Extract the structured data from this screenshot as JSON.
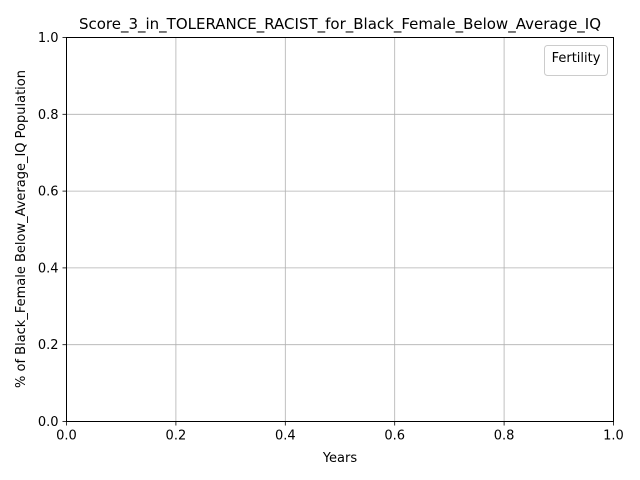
{
  "chart_data": {
    "type": "line",
    "title": "Score_3_in_TOLERANCE_RACIST_for_Black_Female_Below_Average_IQ",
    "xlabel": "Years",
    "ylabel": "% of Black_Female Below_Average_IQ Population",
    "xlim": [
      0.0,
      1.0
    ],
    "ylim": [
      0.0,
      1.0
    ],
    "x_ticks": [
      "0.0",
      "0.2",
      "0.4",
      "0.6",
      "0.8",
      "1.0"
    ],
    "y_ticks": [
      "0.0",
      "0.2",
      "0.4",
      "0.6",
      "0.8",
      "1.0"
    ],
    "grid": true,
    "legend": {
      "title": "Fertility",
      "placement": "top-right",
      "entries": []
    },
    "series": []
  }
}
